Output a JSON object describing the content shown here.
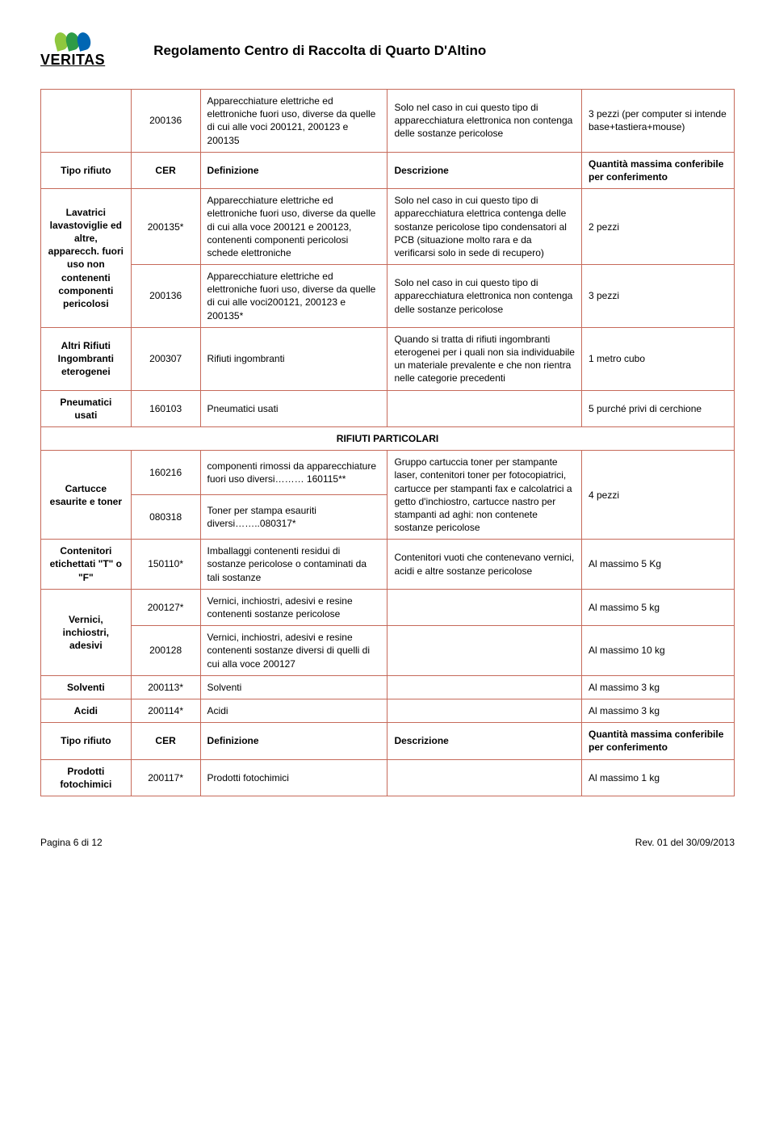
{
  "header": {
    "logoText": "VERITAS",
    "title": "Regolamento Centro di Raccolta di Quarto D'Altino"
  },
  "colors": {
    "border": "#c66a5a",
    "leaf1": "#8fc73e",
    "leaf2": "#2e9b47",
    "leaf3": "#0066b3"
  },
  "hdrLabels": {
    "tipo": "Tipo rifiuto",
    "cer": "CER",
    "def": "Definizione",
    "desc": "Descrizione",
    "qty": "Quantità massima conferibile per conferimento"
  },
  "section": "RIFIUTI PARTICOLARI",
  "rows": {
    "r0": {
      "tipo": "",
      "cer": "200136",
      "def": "Apparecchiature elettriche ed elettroniche fuori uso, diverse da quelle di cui alle voci 200121, 200123 e 200135",
      "desc": "Solo nel caso in cui questo tipo di apparecchiatura elettronica non contenga delle sostanze pericolose",
      "qty": "3 pezzi (per computer si intende base+tastiera+mouse)"
    },
    "r2": {
      "tipo": "Lavatrici lavastoviglie ed altre, apparecch. fuori uso non contenenti componenti pericolosi",
      "cer": "200135*",
      "def": "Apparecchiature elettriche ed elettroniche fuori uso, diverse da quelle di cui alla voce 200121 e 200123, contenenti componenti pericolosi schede elettroniche",
      "desc": "Solo nel caso in cui questo tipo di apparecchiatura elettrica contenga delle sostanze pericolose tipo condensatori al PCB (situazione molto rara e da verificarsi solo in sede di recupero)",
      "qty": "2 pezzi"
    },
    "r3": {
      "cer": "200136",
      "def": "Apparecchiature elettriche ed elettroniche fuori uso, diverse da quelle di cui alle voci200121, 200123 e 200135*",
      "desc": "Solo nel caso in cui questo tipo di apparecchiatura elettronica non contenga delle sostanze pericolose",
      "qty": "3 pezzi"
    },
    "r4": {
      "tipo": "Altri Rifiuti Ingombranti eterogenei",
      "cer": "200307",
      "def": "Rifiuti ingombranti",
      "desc": "Quando si tratta di rifiuti ingombranti eterogenei per i quali non sia individuabile un materiale prevalente e che non rientra nelle categorie precedenti",
      "qty": "1 metro cubo"
    },
    "r5": {
      "tipo": "Pneumatici usati",
      "cer": "160103",
      "def": "Pneumatici usati",
      "desc": "",
      "qty": "5 purché privi di cerchione"
    },
    "r6": {
      "tipo": "Cartucce esaurite e toner",
      "cer": "160216",
      "def": "componenti rimossi da apparecchiature fuori uso diversi……… 160115**",
      "desc": "Gruppo cartuccia toner per stampante laser, contenitori toner per fotocopiatrici, cartucce per stampanti fax e calcolatrici a getto d'inchiostro, cartucce nastro per stampanti ad aghi: non contenete sostanze pericolose",
      "qty": "4 pezzi"
    },
    "r7": {
      "cer": "080318",
      "def": "Toner per stampa esauriti diversi……..080317*"
    },
    "r8": {
      "tipo": "Contenitori etichettati \"T\" o \"F\"",
      "cer": "150110*",
      "def": "Imballaggi contenenti residui di sostanze pericolose o contaminati da tali sostanze",
      "desc": "Contenitori vuoti che contenevano vernici, acidi e altre sostanze pericolose",
      "qty": "Al massimo 5 Kg"
    },
    "r9": {
      "tipo": "Vernici, inchiostri, adesivi",
      "cer": "200127*",
      "def": "Vernici, inchiostri, adesivi e resine contenenti sostanze pericolose",
      "desc": "",
      "qty": "Al massimo 5 kg"
    },
    "r10": {
      "cer": "200128",
      "def": "Vernici, inchiostri, adesivi e resine contenenti sostanze diversi di quelli di cui alla voce 200127",
      "desc": "",
      "qty": "Al massimo 10 kg"
    },
    "r11": {
      "tipo": "Solventi",
      "cer": "200113*",
      "def": "Solventi",
      "desc": "",
      "qty": "Al massimo 3 kg"
    },
    "r12": {
      "tipo": "Acidi",
      "cer": "200114*",
      "def": "Acidi",
      "desc": "",
      "qty": "Al massimo 3 kg"
    },
    "r13": {
      "tipo": "Prodotti fotochimici",
      "cer": "200117*",
      "def": "Prodotti fotochimici",
      "desc": "",
      "qty": "Al massimo 1 kg"
    }
  },
  "footer": {
    "page": "Pagina 6 di 12",
    "rev": "Rev. 01 del 30/09/2013"
  }
}
